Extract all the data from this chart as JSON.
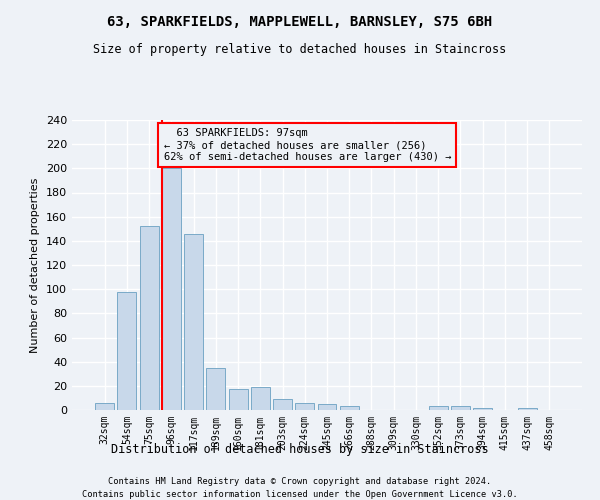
{
  "title": "63, SPARKFIELDS, MAPPLEWELL, BARNSLEY, S75 6BH",
  "subtitle": "Size of property relative to detached houses in Staincross",
  "xlabel": "Distribution of detached houses by size in Staincross",
  "ylabel": "Number of detached properties",
  "bar_color": "#c8d8ea",
  "bar_edge_color": "#7aaac8",
  "categories": [
    "32sqm",
    "54sqm",
    "75sqm",
    "96sqm",
    "117sqm",
    "139sqm",
    "160sqm",
    "181sqm",
    "203sqm",
    "224sqm",
    "245sqm",
    "266sqm",
    "288sqm",
    "309sqm",
    "330sqm",
    "352sqm",
    "373sqm",
    "394sqm",
    "415sqm",
    "437sqm",
    "458sqm"
  ],
  "values": [
    6,
    98,
    152,
    200,
    146,
    35,
    17,
    19,
    9,
    6,
    5,
    3,
    0,
    0,
    0,
    3,
    3,
    2,
    0,
    2,
    0
  ],
  "annotation_line1": "63 SPARKFIELDS: 97sqm",
  "annotation_line2": "← 37% of detached houses are smaller (256)",
  "annotation_line3": "62% of semi-detached houses are larger (430) →",
  "red_line_index": 3,
  "footer1": "Contains HM Land Registry data © Crown copyright and database right 2024.",
  "footer2": "Contains public sector information licensed under the Open Government Licence v3.0.",
  "ylim": [
    0,
    240
  ],
  "yticks": [
    0,
    20,
    40,
    60,
    80,
    100,
    120,
    140,
    160,
    180,
    200,
    220,
    240
  ],
  "background_color": "#eef2f7",
  "grid_color": "#ffffff",
  "figsize": [
    6.0,
    5.0
  ],
  "dpi": 100
}
